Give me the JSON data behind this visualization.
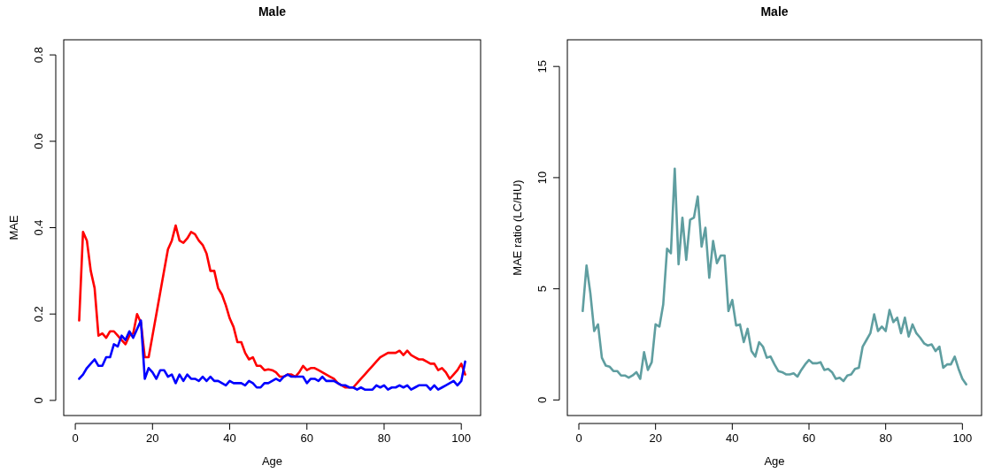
{
  "chart_data": [
    {
      "type": "line",
      "title": "Male",
      "xlabel": "Age",
      "ylabel": "MAE",
      "xlim": [
        -3,
        105
      ],
      "xticks": [
        0,
        20,
        40,
        60,
        80,
        100
      ],
      "ylim": [
        -0.035,
        0.835
      ],
      "yticks": [
        0,
        0.2,
        0.4,
        0.6,
        0.8
      ],
      "grid": false,
      "marker": "none",
      "line_style": "solid",
      "x": [
        1,
        2,
        3,
        4,
        5,
        6,
        7,
        8,
        9,
        10,
        11,
        12,
        13,
        14,
        15,
        16,
        17,
        18,
        19,
        20,
        21,
        22,
        23,
        24,
        25,
        26,
        27,
        28,
        29,
        30,
        31,
        32,
        33,
        34,
        35,
        36,
        37,
        38,
        39,
        40,
        41,
        42,
        43,
        44,
        45,
        46,
        47,
        48,
        49,
        50,
        51,
        52,
        53,
        54,
        55,
        56,
        57,
        58,
        59,
        60,
        61,
        62,
        63,
        64,
        65,
        66,
        67,
        68,
        69,
        70,
        71,
        72,
        73,
        74,
        75,
        76,
        77,
        78,
        79,
        80,
        81,
        82,
        83,
        84,
        85,
        86,
        87,
        88,
        89,
        90,
        91,
        92,
        93,
        94,
        95,
        96,
        97,
        98,
        99,
        100,
        101
      ],
      "series": [
        {
          "color": "#ff0000",
          "values": [
            0.185,
            0.39,
            0.37,
            0.3,
            0.26,
            0.15,
            0.155,
            0.145,
            0.16,
            0.16,
            0.15,
            0.14,
            0.13,
            0.15,
            0.155,
            0.2,
            0.18,
            0.1,
            0.1,
            0.15,
            0.2,
            0.25,
            0.3,
            0.35,
            0.37,
            0.405,
            0.37,
            0.365,
            0.375,
            0.39,
            0.385,
            0.37,
            0.36,
            0.34,
            0.3,
            0.3,
            0.26,
            0.245,
            0.22,
            0.19,
            0.17,
            0.135,
            0.135,
            0.11,
            0.095,
            0.1,
            0.08,
            0.08,
            0.07,
            0.072,
            0.07,
            0.065,
            0.055,
            0.055,
            0.06,
            0.06,
            0.055,
            0.065,
            0.08,
            0.07,
            0.075,
            0.075,
            0.07,
            0.065,
            0.06,
            0.055,
            0.05,
            0.04,
            0.035,
            0.03,
            0.03,
            0.03,
            0.04,
            0.05,
            0.06,
            0.07,
            0.08,
            0.09,
            0.1,
            0.105,
            0.11,
            0.11,
            0.11,
            0.115,
            0.105,
            0.115,
            0.105,
            0.1,
            0.095,
            0.095,
            0.09,
            0.085,
            0.085,
            0.07,
            0.075,
            0.065,
            0.05,
            0.06,
            0.07,
            0.085,
            0.06
          ]
        },
        {
          "color": "#0000ff",
          "values": [
            0.05,
            0.06,
            0.075,
            0.085,
            0.095,
            0.08,
            0.08,
            0.1,
            0.1,
            0.13,
            0.125,
            0.15,
            0.14,
            0.16,
            0.145,
            0.165,
            0.185,
            0.05,
            0.075,
            0.065,
            0.05,
            0.07,
            0.07,
            0.055,
            0.06,
            0.04,
            0.06,
            0.045,
            0.06,
            0.05,
            0.05,
            0.045,
            0.055,
            0.045,
            0.055,
            0.045,
            0.045,
            0.04,
            0.035,
            0.045,
            0.04,
            0.04,
            0.04,
            0.035,
            0.045,
            0.04,
            0.03,
            0.03,
            0.04,
            0.04,
            0.045,
            0.05,
            0.045,
            0.055,
            0.06,
            0.055,
            0.055,
            0.055,
            0.055,
            0.04,
            0.05,
            0.05,
            0.045,
            0.055,
            0.045,
            0.045,
            0.045,
            0.04,
            0.035,
            0.035,
            0.03,
            0.03,
            0.025,
            0.03,
            0.025,
            0.025,
            0.025,
            0.035,
            0.03,
            0.035,
            0.025,
            0.03,
            0.03,
            0.035,
            0.03,
            0.035,
            0.025,
            0.03,
            0.035,
            0.035,
            0.035,
            0.025,
            0.035,
            0.025,
            0.03,
            0.035,
            0.04,
            0.045,
            0.035,
            0.045,
            0.09
          ]
        }
      ]
    },
    {
      "type": "line",
      "title": "Male",
      "xlabel": "Age",
      "ylabel": "MAE ratio (LC/HU)",
      "xlim": [
        -3,
        105
      ],
      "xticks": [
        0,
        20,
        40,
        60,
        80,
        100
      ],
      "ylim": [
        -0.7,
        16.2
      ],
      "yticks": [
        0,
        5,
        10,
        15
      ],
      "grid": false,
      "marker": "none",
      "line_style": "solid",
      "x": [
        1,
        2,
        3,
        4,
        5,
        6,
        7,
        8,
        9,
        10,
        11,
        12,
        13,
        14,
        15,
        16,
        17,
        18,
        19,
        20,
        21,
        22,
        23,
        24,
        25,
        26,
        27,
        28,
        29,
        30,
        31,
        32,
        33,
        34,
        35,
        36,
        37,
        38,
        39,
        40,
        41,
        42,
        43,
        44,
        45,
        46,
        47,
        48,
        49,
        50,
        51,
        52,
        53,
        54,
        55,
        56,
        57,
        58,
        59,
        60,
        61,
        62,
        63,
        64,
        65,
        66,
        67,
        68,
        69,
        70,
        71,
        72,
        73,
        74,
        75,
        76,
        77,
        78,
        79,
        80,
        81,
        82,
        83,
        84,
        85,
        86,
        87,
        88,
        89,
        90,
        91,
        92,
        93,
        94,
        95,
        96,
        97,
        98,
        99,
        100,
        101
      ],
      "series": [
        {
          "color": "#5f9ea0",
          "values": [
            4.0,
            6.05,
            4.8,
            3.1,
            3.4,
            1.9,
            1.55,
            1.5,
            1.3,
            1.3,
            1.1,
            1.1,
            1.0,
            1.1,
            1.25,
            0.95,
            2.15,
            1.35,
            1.7,
            3.4,
            3.3,
            4.3,
            6.8,
            6.6,
            10.4,
            6.1,
            8.2,
            6.3,
            8.1,
            8.2,
            9.15,
            6.9,
            7.75,
            5.5,
            7.15,
            6.15,
            6.5,
            6.5,
            4.0,
            4.5,
            3.35,
            3.4,
            2.6,
            3.2,
            2.2,
            1.95,
            2.6,
            2.4,
            1.9,
            1.95,
            1.6,
            1.3,
            1.25,
            1.15,
            1.15,
            1.2,
            1.05,
            1.35,
            1.6,
            1.8,
            1.65,
            1.65,
            1.7,
            1.35,
            1.4,
            1.25,
            0.95,
            1.0,
            0.85,
            1.1,
            1.15,
            1.4,
            1.45,
            2.4,
            2.7,
            3.0,
            3.85,
            3.1,
            3.3,
            3.1,
            4.05,
            3.5,
            3.7,
            3.0,
            3.7,
            2.85,
            3.4,
            3.0,
            2.8,
            2.55,
            2.45,
            2.5,
            2.2,
            2.4,
            1.45,
            1.6,
            1.6,
            1.95,
            1.4,
            0.95,
            0.7
          ]
        }
      ]
    }
  ]
}
